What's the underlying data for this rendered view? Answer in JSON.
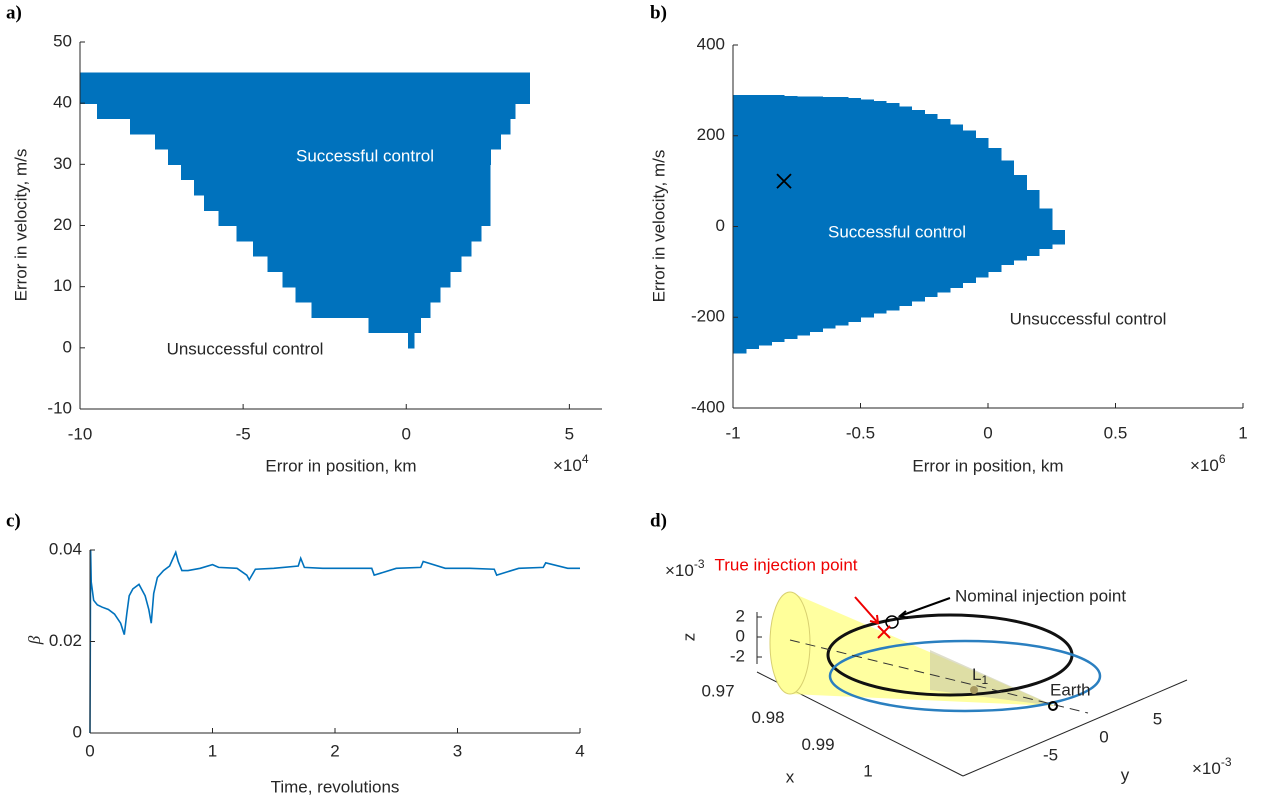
{
  "chart_data": [
    {
      "type": "step_region",
      "panel": "a)",
      "x_label": "Error in position, km",
      "y_label": "Error in velocity, m/s",
      "x_multiplier": "×10",
      "x_power": "4",
      "xlim": [
        -10,
        6
      ],
      "xticks": [
        -10,
        -5,
        0,
        5
      ],
      "ylim": [
        -10,
        50
      ],
      "yticks": [
        -10,
        0,
        10,
        20,
        30,
        40,
        50
      ],
      "color": "#0072bd",
      "orientation": "rows",
      "y_edges": [
        0,
        2.5,
        5,
        7.5,
        10,
        12.5,
        15,
        17.5,
        20,
        22.5,
        25,
        27.5,
        30,
        32.5,
        35,
        37.5,
        40,
        45
      ],
      "x_left": [
        0.05,
        -1.15,
        -2.9,
        -3.4,
        -3.8,
        -4.25,
        -4.7,
        -5.2,
        -5.75,
        -6.2,
        -6.5,
        -6.9,
        -7.3,
        -7.7,
        -8.47,
        -9.48,
        -10
      ],
      "x_right": [
        0.25,
        0.45,
        0.75,
        1.05,
        1.35,
        1.7,
        2.0,
        2.3,
        2.58,
        2.58,
        2.58,
        2.58,
        2.6,
        2.9,
        3.2,
        3.35,
        3.8
      ],
      "annotations": [
        "Successful control",
        "Unsuccessful control"
      ]
    },
    {
      "type": "step_region",
      "panel": "b)",
      "x_label": "Error in position, km",
      "y_label": "Error in velocity, m/s",
      "x_multiplier": "×10",
      "x_power": "6",
      "xlim": [
        -1,
        1
      ],
      "xticks": [
        -1,
        -0.5,
        0,
        0.5,
        1
      ],
      "ylim": [
        -400,
        400
      ],
      "yticks": [
        -400,
        -200,
        0,
        200,
        400
      ],
      "color": "#0072bd",
      "orientation": "columns",
      "x_edges": [
        -1,
        -0.95,
        -0.9,
        -0.85,
        -0.8,
        -0.75,
        -0.7,
        -0.65,
        -0.6,
        -0.55,
        -0.5,
        -0.45,
        -0.4,
        -0.35,
        -0.3,
        -0.25,
        -0.2,
        -0.15,
        -0.1,
        -0.05,
        0,
        0.05,
        0.1,
        0.15,
        0.2,
        0.25,
        0.3
      ],
      "y_bottom": [
        -280,
        -270,
        -262,
        -255,
        -248,
        -240,
        -232,
        -225,
        -218,
        -210,
        -200,
        -192,
        -185,
        -175,
        -165,
        -155,
        -145,
        -135,
        -125,
        -112,
        -100,
        -85,
        -75,
        -65,
        -50,
        -40
      ],
      "y_top": [
        290,
        290,
        290,
        290,
        288,
        287,
        287,
        285,
        285,
        283,
        280,
        277,
        272,
        265,
        257,
        248,
        237,
        225,
        212,
        195,
        173,
        146,
        113,
        80,
        40,
        -8
      ],
      "marker": {
        "x": -0.8,
        "y": 100
      },
      "annotations": [
        "Successful control",
        "Unsuccessful control"
      ]
    },
    {
      "type": "line",
      "panel": "c)",
      "x_label": "Time, revolutions",
      "y_label": "β",
      "xlim": [
        0,
        4
      ],
      "xticks": [
        0,
        1,
        2,
        3,
        4
      ],
      "ylim": [
        0,
        0.04
      ],
      "yticks": [
        0,
        0.02,
        0.04
      ],
      "color": "#0072bd",
      "x": [
        0,
        0.005,
        0.01,
        0.03,
        0.06,
        0.1,
        0.15,
        0.2,
        0.25,
        0.28,
        0.3,
        0.32,
        0.35,
        0.4,
        0.45,
        0.48,
        0.5,
        0.52,
        0.55,
        0.6,
        0.65,
        0.7,
        0.72,
        0.75,
        0.8,
        0.9,
        1.0,
        1.05,
        1.2,
        1.28,
        1.3,
        1.35,
        1.5,
        1.7,
        1.72,
        1.75,
        1.9,
        2.1,
        2.3,
        2.32,
        2.5,
        2.7,
        2.72,
        2.9,
        3.1,
        3.3,
        3.32,
        3.5,
        3.7,
        3.72,
        3.9,
        4.0
      ],
      "values": [
        0,
        0.04,
        0.033,
        0.029,
        0.028,
        0.0275,
        0.027,
        0.026,
        0.024,
        0.0215,
        0.026,
        0.03,
        0.0315,
        0.0325,
        0.03,
        0.027,
        0.024,
        0.0305,
        0.034,
        0.0355,
        0.0365,
        0.0395,
        0.0375,
        0.0355,
        0.0355,
        0.036,
        0.0368,
        0.0362,
        0.036,
        0.0345,
        0.0335,
        0.0358,
        0.036,
        0.0365,
        0.0382,
        0.0362,
        0.036,
        0.036,
        0.036,
        0.0345,
        0.036,
        0.0362,
        0.0375,
        0.036,
        0.036,
        0.0358,
        0.0345,
        0.036,
        0.0362,
        0.0372,
        0.036,
        0.036
      ]
    },
    {
      "type": "3d",
      "panel": "d)",
      "x_label": "x",
      "y_label": "y",
      "z_label": "z",
      "xticks": [
        0.97,
        0.98,
        0.99,
        1
      ],
      "yticks": [
        -5,
        0,
        5
      ],
      "zticks": [
        -2,
        0,
        2
      ],
      "z_multiplier": "×10",
      "z_power": "-3",
      "y_multiplier": "×10",
      "y_power": "-3",
      "annotations": [
        "True injection point",
        "Nominal injection point",
        "Earth"
      ],
      "point_label": "L",
      "point_subscript": "1"
    }
  ]
}
